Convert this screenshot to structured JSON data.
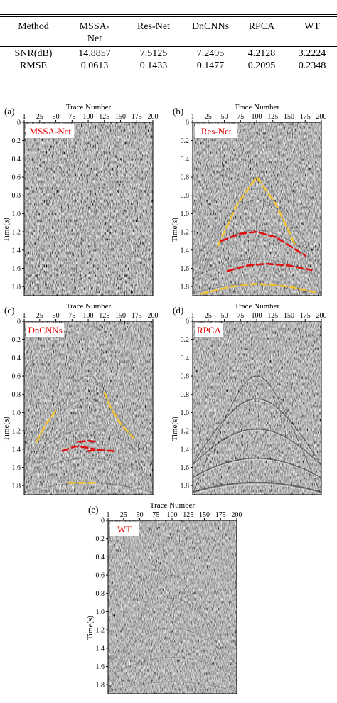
{
  "table": {
    "headers": [
      "Method",
      "MSSA-Net",
      "Res-Net",
      "DnCNNs",
      "RPCA",
      "WT"
    ],
    "rows": [
      {
        "label": "SNR(dB)",
        "values": [
          "14.8857",
          "7.5125",
          "7.2495",
          "4.2128",
          "3.2224"
        ]
      },
      {
        "label": "RMSE",
        "values": [
          "0.0613",
          "0.1433",
          "0.1477",
          "0.2095",
          "0.2348"
        ]
      }
    ]
  },
  "header_split": {
    "line1": "MSSA-",
    "line2": "Net"
  },
  "axes": {
    "x_label": "Trace Number",
    "y_label": "Time(s)",
    "x_ticks": [
      1,
      25,
      50,
      75,
      100,
      125,
      150,
      175,
      200
    ],
    "y_ticks": [
      0,
      0.2,
      0.4,
      0.6,
      0.8,
      1.0,
      1.2,
      1.4,
      1.6,
      1.8
    ],
    "y_tick_labels": [
      "0",
      "0.2",
      "0.4",
      "0.6",
      "0.8",
      "1.0",
      "1.2",
      "1.4",
      "1.6",
      "1.8"
    ],
    "x_range": [
      1,
      200
    ],
    "y_range": [
      0,
      1.9
    ]
  },
  "colors": {
    "label_red": "#e00000",
    "dash_yellow": "#f2c232",
    "dash_red": "#e01010",
    "noise_bg": "#8c8c8c"
  },
  "panels": [
    {
      "id": "a",
      "letter": "(a)",
      "method": "MSSA-Net",
      "residual": 0.0,
      "noise": 1.0,
      "dash_yellow": [],
      "dash_red": []
    },
    {
      "id": "b",
      "letter": "(b)",
      "method": "Res-Net",
      "residual": 0.55,
      "noise": 0.9,
      "dash_yellow": [
        [
          [
            40,
            1.35
          ],
          [
            70,
            0.9
          ],
          [
            100,
            0.6
          ],
          [
            130,
            0.9
          ],
          [
            160,
            1.35
          ]
        ],
        [
          [
            15,
            1.88
          ],
          [
            60,
            1.8
          ],
          [
            100,
            1.77
          ],
          [
            150,
            1.8
          ],
          [
            190,
            1.86
          ]
        ]
      ],
      "dash_red": [
        [
          [
            45,
            1.3
          ],
          [
            75,
            1.22
          ],
          [
            100,
            1.2
          ],
          [
            130,
            1.26
          ],
          [
            175,
            1.46
          ]
        ],
        [
          [
            55,
            1.63
          ],
          [
            85,
            1.57
          ],
          [
            115,
            1.55
          ],
          [
            150,
            1.57
          ],
          [
            185,
            1.62
          ]
        ]
      ]
    },
    {
      "id": "c",
      "letter": "(c)",
      "method": "DnCNNs",
      "residual": 0.55,
      "noise": 0.9,
      "dash_yellow": [
        [
          [
            20,
            1.32
          ],
          [
            35,
            1.12
          ],
          [
            50,
            0.98
          ]
        ],
        [
          [
            125,
            0.78
          ],
          [
            135,
            0.95
          ],
          [
            150,
            1.12
          ],
          [
            170,
            1.28
          ]
        ],
        [
          [
            70,
            1.77
          ],
          [
            90,
            1.77
          ],
          [
            110,
            1.77
          ]
        ]
      ],
      "dash_red": [
        [
          [
            60,
            1.42
          ],
          [
            80,
            1.37
          ],
          [
            95,
            1.38
          ],
          [
            110,
            1.4
          ]
        ],
        [
          [
            85,
            1.32
          ],
          [
            100,
            1.31
          ],
          [
            115,
            1.32
          ]
        ],
        [
          [
            100,
            1.42
          ],
          [
            115,
            1.41
          ],
          [
            140,
            1.42
          ]
        ]
      ]
    },
    {
      "id": "d",
      "letter": "(d)",
      "method": "RPCA",
      "residual": 1.0,
      "noise": 0.8,
      "dash_yellow": [],
      "dash_red": []
    },
    {
      "id": "e",
      "letter": "(e)",
      "method": "WT",
      "residual": 0.45,
      "noise": 0.75,
      "dash_yellow": [],
      "dash_red": []
    }
  ]
}
